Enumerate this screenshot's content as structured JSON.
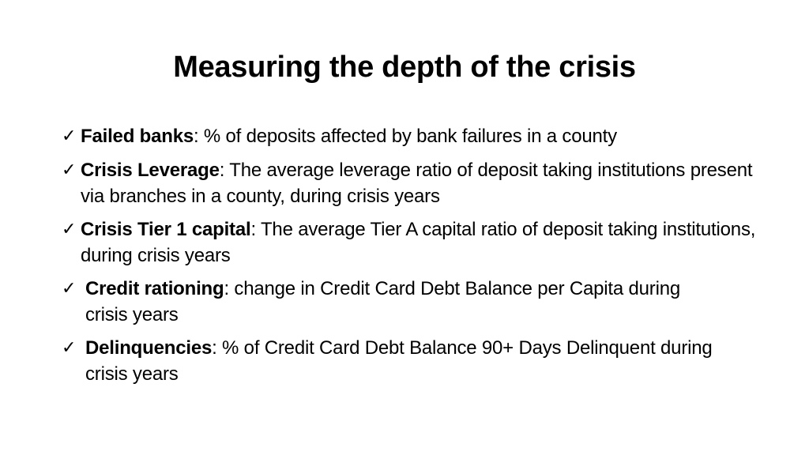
{
  "slide": {
    "title": "Measuring the depth of the crisis",
    "check_glyph": "✓",
    "bullets": [
      {
        "term": "Failed banks",
        "separator": ":",
        "text": " % of deposits affected by bank failures in a county"
      },
      {
        "term": "Crisis Leverage",
        "separator": ":",
        "text": " The average leverage ratio of deposit taking institutions present via branches in a county, during crisis years"
      },
      {
        "term": "Crisis Tier 1 capital",
        "separator": ":",
        "text": " The average Tier A capital ratio of deposit taking institutions, during crisis years"
      },
      {
        "term": "Credit rationing",
        "separator": ":",
        "text": " change in Credit Card Debt Balance per Capita during crisis years"
      },
      {
        "term": "Delinquencies",
        "separator": ":",
        "text": " % of Credit Card Debt Balance 90+ Days Delinquent during crisis years"
      }
    ]
  }
}
